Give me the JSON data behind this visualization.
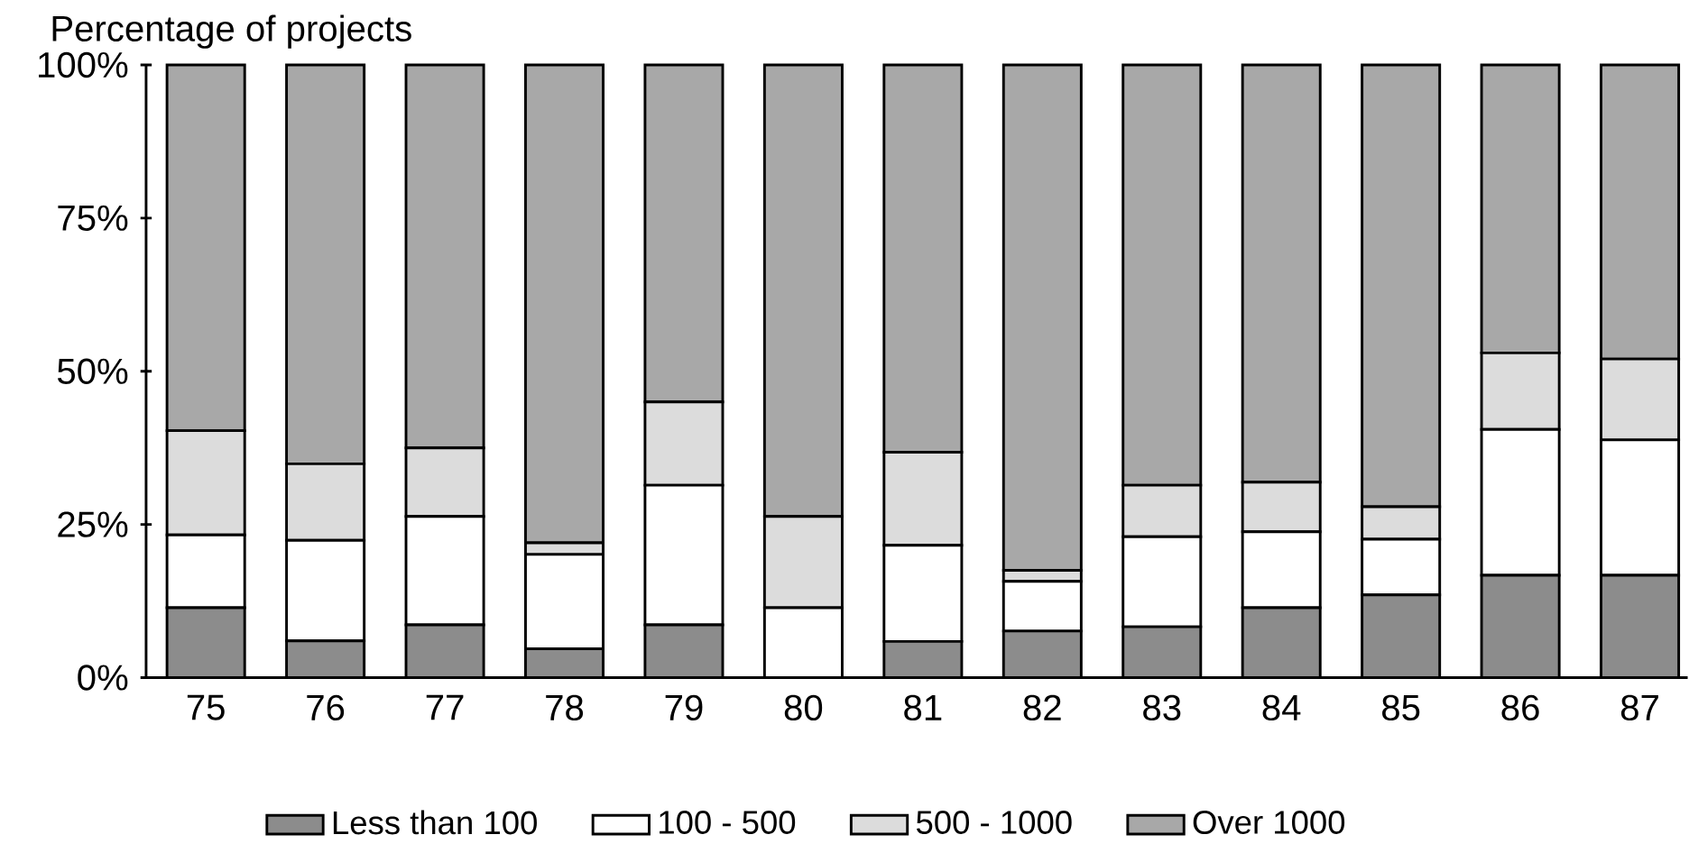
{
  "chart_data": {
    "type": "bar",
    "stacked": true,
    "ylabel": "Percentage of projects",
    "categories": [
      "75",
      "76",
      "77",
      "78",
      "79",
      "80",
      "81",
      "82",
      "83",
      "84",
      "85",
      "86",
      "87"
    ],
    "ylim": [
      0,
      100
    ],
    "yticks": [
      {
        "value": 0,
        "label": "0%"
      },
      {
        "value": 25,
        "label": "25%"
      },
      {
        "value": 50,
        "label": "50%"
      },
      {
        "value": 75,
        "label": "75%"
      },
      {
        "value": 100,
        "label": "100%"
      }
    ],
    "legend": "bottom",
    "series": [
      {
        "name": "Less than 100",
        "color": "#8c8c8c",
        "values": [
          11.4,
          6,
          8.6,
          4.7,
          8.6,
          0,
          5.9,
          7.6,
          8.3,
          11.4,
          13.5,
          16.7,
          16.7
        ]
      },
      {
        "name": "100 - 500",
        "color": "#ffffff",
        "values": [
          11.9,
          16.4,
          17.7,
          15.4,
          22.8,
          11.4,
          15.7,
          8.1,
          14.7,
          12.4,
          9.1,
          23.8,
          22.1
        ]
      },
      {
        "name": "500 - 1000",
        "color": "#dcdcdc",
        "values": [
          17,
          12.5,
          11.2,
          1.9,
          13.6,
          14.9,
          15.2,
          1.8,
          8.4,
          8.1,
          5.3,
          12.5,
          13.2
        ]
      },
      {
        "name": "Over 1000",
        "color": "#a8a8a8",
        "values": [
          59.7,
          65.1,
          62.5,
          78,
          55,
          73.7,
          63.2,
          82.5,
          68.6,
          68.1,
          72.1,
          47,
          48
        ]
      }
    ]
  }
}
